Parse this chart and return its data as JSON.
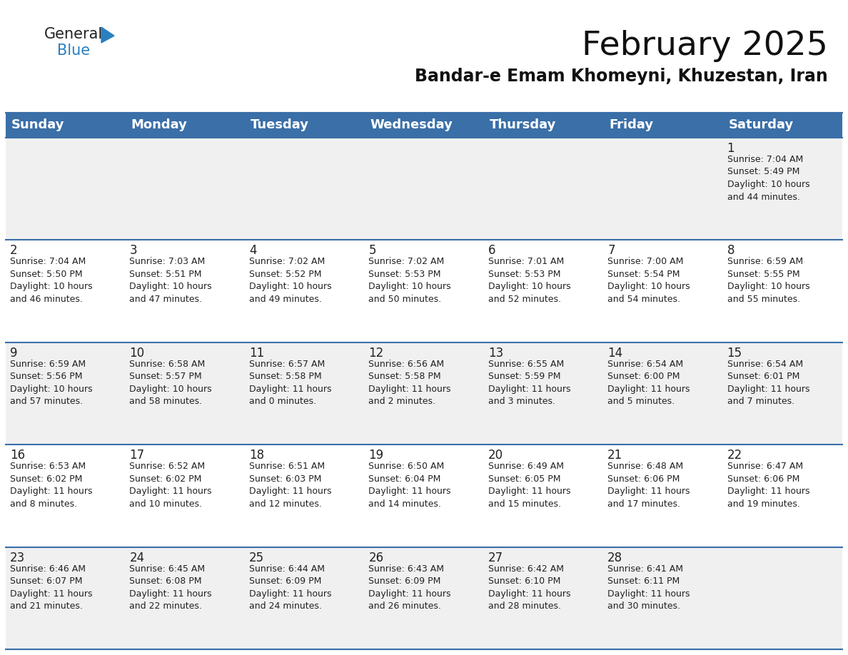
{
  "title": "February 2025",
  "subtitle": "Bandar-e Emam Khomeyni, Khuzestan, Iran",
  "days_of_week": [
    "Sunday",
    "Monday",
    "Tuesday",
    "Wednesday",
    "Thursday",
    "Friday",
    "Saturday"
  ],
  "header_bg_color": "#3a6fa8",
  "header_text_color": "#ffffff",
  "cell_bg_even": "#f0f0f0",
  "cell_bg_odd": "#ffffff",
  "cell_text_color": "#222222",
  "day_num_color": "#222222",
  "grid_color": "#3a6fa8",
  "logo_general_color": "#222222",
  "logo_blue_color": "#2a7fc0",
  "title_fontsize": 34,
  "subtitle_fontsize": 17,
  "header_fontsize": 13,
  "day_num_fontsize": 12,
  "cell_text_fontsize": 9,
  "calendar": [
    [
      {
        "day": null,
        "info": ""
      },
      {
        "day": null,
        "info": ""
      },
      {
        "day": null,
        "info": ""
      },
      {
        "day": null,
        "info": ""
      },
      {
        "day": null,
        "info": ""
      },
      {
        "day": null,
        "info": ""
      },
      {
        "day": 1,
        "info": "Sunrise: 7:04 AM\nSunset: 5:49 PM\nDaylight: 10 hours\nand 44 minutes."
      }
    ],
    [
      {
        "day": 2,
        "info": "Sunrise: 7:04 AM\nSunset: 5:50 PM\nDaylight: 10 hours\nand 46 minutes."
      },
      {
        "day": 3,
        "info": "Sunrise: 7:03 AM\nSunset: 5:51 PM\nDaylight: 10 hours\nand 47 minutes."
      },
      {
        "day": 4,
        "info": "Sunrise: 7:02 AM\nSunset: 5:52 PM\nDaylight: 10 hours\nand 49 minutes."
      },
      {
        "day": 5,
        "info": "Sunrise: 7:02 AM\nSunset: 5:53 PM\nDaylight: 10 hours\nand 50 minutes."
      },
      {
        "day": 6,
        "info": "Sunrise: 7:01 AM\nSunset: 5:53 PM\nDaylight: 10 hours\nand 52 minutes."
      },
      {
        "day": 7,
        "info": "Sunrise: 7:00 AM\nSunset: 5:54 PM\nDaylight: 10 hours\nand 54 minutes."
      },
      {
        "day": 8,
        "info": "Sunrise: 6:59 AM\nSunset: 5:55 PM\nDaylight: 10 hours\nand 55 minutes."
      }
    ],
    [
      {
        "day": 9,
        "info": "Sunrise: 6:59 AM\nSunset: 5:56 PM\nDaylight: 10 hours\nand 57 minutes."
      },
      {
        "day": 10,
        "info": "Sunrise: 6:58 AM\nSunset: 5:57 PM\nDaylight: 10 hours\nand 58 minutes."
      },
      {
        "day": 11,
        "info": "Sunrise: 6:57 AM\nSunset: 5:58 PM\nDaylight: 11 hours\nand 0 minutes."
      },
      {
        "day": 12,
        "info": "Sunrise: 6:56 AM\nSunset: 5:58 PM\nDaylight: 11 hours\nand 2 minutes."
      },
      {
        "day": 13,
        "info": "Sunrise: 6:55 AM\nSunset: 5:59 PM\nDaylight: 11 hours\nand 3 minutes."
      },
      {
        "day": 14,
        "info": "Sunrise: 6:54 AM\nSunset: 6:00 PM\nDaylight: 11 hours\nand 5 minutes."
      },
      {
        "day": 15,
        "info": "Sunrise: 6:54 AM\nSunset: 6:01 PM\nDaylight: 11 hours\nand 7 minutes."
      }
    ],
    [
      {
        "day": 16,
        "info": "Sunrise: 6:53 AM\nSunset: 6:02 PM\nDaylight: 11 hours\nand 8 minutes."
      },
      {
        "day": 17,
        "info": "Sunrise: 6:52 AM\nSunset: 6:02 PM\nDaylight: 11 hours\nand 10 minutes."
      },
      {
        "day": 18,
        "info": "Sunrise: 6:51 AM\nSunset: 6:03 PM\nDaylight: 11 hours\nand 12 minutes."
      },
      {
        "day": 19,
        "info": "Sunrise: 6:50 AM\nSunset: 6:04 PM\nDaylight: 11 hours\nand 14 minutes."
      },
      {
        "day": 20,
        "info": "Sunrise: 6:49 AM\nSunset: 6:05 PM\nDaylight: 11 hours\nand 15 minutes."
      },
      {
        "day": 21,
        "info": "Sunrise: 6:48 AM\nSunset: 6:06 PM\nDaylight: 11 hours\nand 17 minutes."
      },
      {
        "day": 22,
        "info": "Sunrise: 6:47 AM\nSunset: 6:06 PM\nDaylight: 11 hours\nand 19 minutes."
      }
    ],
    [
      {
        "day": 23,
        "info": "Sunrise: 6:46 AM\nSunset: 6:07 PM\nDaylight: 11 hours\nand 21 minutes."
      },
      {
        "day": 24,
        "info": "Sunrise: 6:45 AM\nSunset: 6:08 PM\nDaylight: 11 hours\nand 22 minutes."
      },
      {
        "day": 25,
        "info": "Sunrise: 6:44 AM\nSunset: 6:09 PM\nDaylight: 11 hours\nand 24 minutes."
      },
      {
        "day": 26,
        "info": "Sunrise: 6:43 AM\nSunset: 6:09 PM\nDaylight: 11 hours\nand 26 minutes."
      },
      {
        "day": 27,
        "info": "Sunrise: 6:42 AM\nSunset: 6:10 PM\nDaylight: 11 hours\nand 28 minutes."
      },
      {
        "day": 28,
        "info": "Sunrise: 6:41 AM\nSunset: 6:11 PM\nDaylight: 11 hours\nand 30 minutes."
      },
      {
        "day": null,
        "info": ""
      }
    ]
  ]
}
